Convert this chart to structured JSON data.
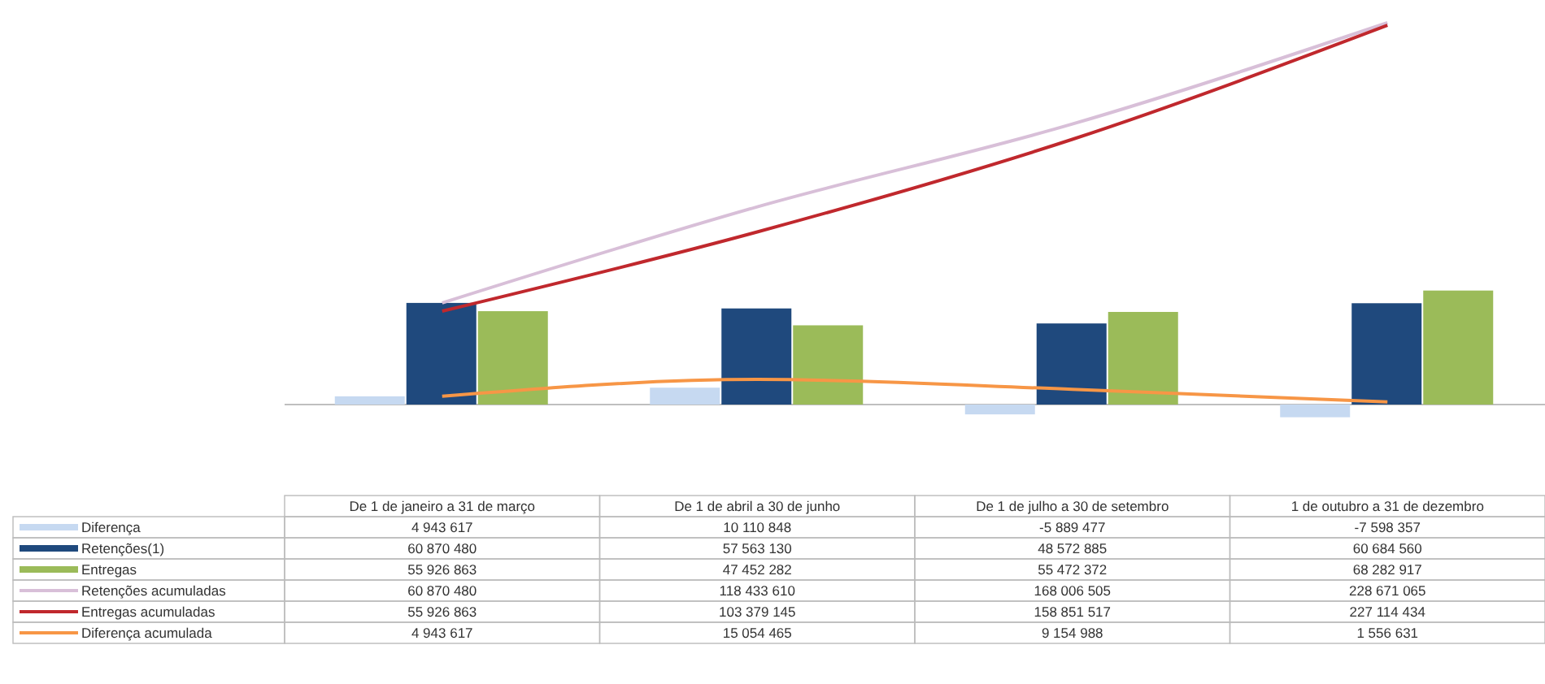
{
  "chart_data": {
    "type": "bar",
    "categories": [
      "De 1 de janeiro a 31 de março",
      "De 1 de abril a 30 de junho",
      "De 1 de julho a 30 de setembro",
      "1 de outubro a 31 de dezembro"
    ],
    "series": [
      {
        "name": "Diferença",
        "color": "#c6d9f1",
        "values": [
          4943617,
          10110848,
          -5889477,
          -7598357
        ]
      },
      {
        "name": "Retenções(1)",
        "color": "#1f497d",
        "values": [
          60870480,
          57563130,
          48572885,
          60684560
        ]
      },
      {
        "name": "Entregas",
        "color": "#9bbb59",
        "values": [
          55926863,
          47452282,
          55472372,
          68282917
        ]
      },
      {
        "name": "Retenções acumuladas",
        "type": "line",
        "color": "#d8bfd8",
        "values": [
          60870480,
          118433610,
          168006505,
          228671065
        ]
      },
      {
        "name": "Entregas acumuladas",
        "type": "line",
        "color": "#c0282d",
        "values": [
          55926863,
          103379145,
          158851517,
          227114434
        ]
      },
      {
        "name": "Diferença acumulada",
        "type": "line",
        "color": "#f79646",
        "values": [
          4943617,
          15054465,
          9154988,
          1556631
        ]
      }
    ],
    "data_labels": true,
    "legend": "bottom left"
  }
}
